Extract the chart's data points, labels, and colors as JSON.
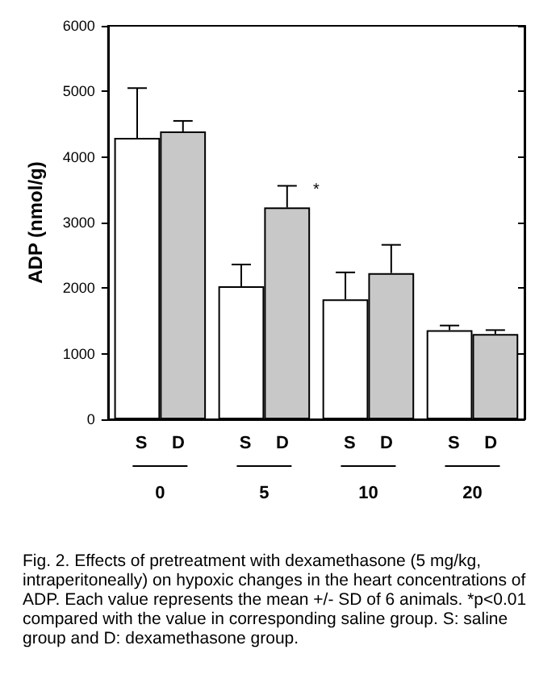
{
  "chart_data": {
    "type": "bar",
    "categories": [
      "0",
      "5",
      "10",
      "20"
    ],
    "series": [
      {
        "name": "S",
        "color": "#ffffff",
        "values": [
          4290,
          2030,
          1830,
          1360
        ],
        "errors": [
          760,
          330,
          410,
          70
        ]
      },
      {
        "name": "D",
        "color": "#c8c8c8",
        "values": [
          4390,
          3230,
          2230,
          1300
        ],
        "errors": [
          160,
          330,
          430,
          60
        ]
      }
    ],
    "ylabel": "ADP (nmol/g)",
    "ylim": [
      0,
      6000
    ],
    "yticks": [
      0,
      1000,
      2000,
      3000,
      4000,
      5000,
      6000
    ],
    "grid": false,
    "legend": false,
    "annotations": [
      "*",
      "Fig. 2.  Effects of pretreatment with dexamethasone (5 mg/kg, intraperitoneally) on hypoxic changes in the heart concentrations of ADP.  Each value represents the mean +/- SD of 6 animals.  *p<0.01 compared with the value in corresponding saline group.  S: saline group and D: dexamethasone group."
    ]
  }
}
